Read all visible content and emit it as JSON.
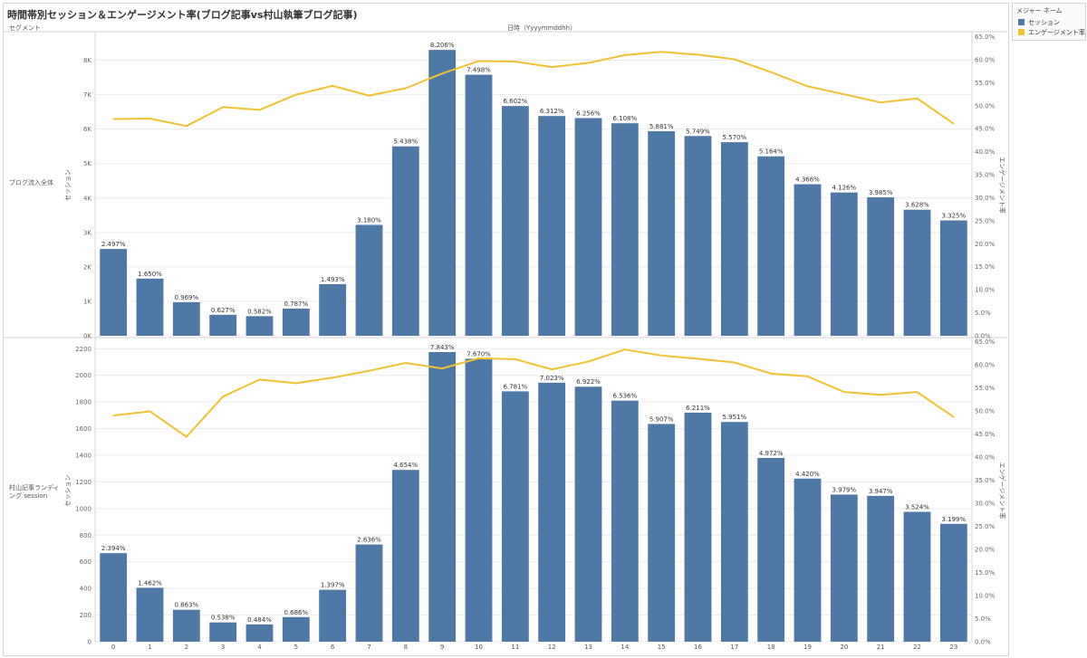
{
  "title": "時間帯別セッション＆エンゲージメント率(ブログ記事vs村山執筆ブログ記事)",
  "segment_header": "セグメント",
  "x_header": "日時（Yyyymmddhh）",
  "legend": {
    "title": "メジャー ネーム",
    "items": [
      {
        "label": "セッション",
        "color": "#4e79a7"
      },
      {
        "label": "エンゲージメント率",
        "color": "#f1c232"
      }
    ]
  },
  "colors": {
    "bar": "#4e79a7",
    "line": "#f1c232",
    "grid": "#ececec"
  },
  "chart_data": [
    {
      "type": "bar",
      "segment": "ブログ流入全体",
      "ylabel": "セッション",
      "y2label": "エンゲージメント率",
      "ylim": [
        0,
        8750
      ],
      "y2lim": [
        0,
        0.655
      ],
      "y_ticks": [
        {
          "value": 0,
          "label": "0K"
        },
        {
          "value": 1000,
          "label": "1K"
        },
        {
          "value": 2000,
          "label": "2K"
        },
        {
          "value": 3000,
          "label": "3K"
        },
        {
          "value": 4000,
          "label": "4K"
        },
        {
          "value": 5000,
          "label": "5K"
        },
        {
          "value": 6000,
          "label": "6K"
        },
        {
          "value": 7000,
          "label": "7K"
        },
        {
          "value": 8000,
          "label": "8K"
        }
      ],
      "y2_ticks": [
        {
          "value": 0.0,
          "label": "0.0%"
        },
        {
          "value": 0.05,
          "label": "5.0%"
        },
        {
          "value": 0.1,
          "label": "10.0%"
        },
        {
          "value": 0.15,
          "label": "15.0%"
        },
        {
          "value": 0.2,
          "label": "20.0%"
        },
        {
          "value": 0.25,
          "label": "25.0%"
        },
        {
          "value": 0.3,
          "label": "30.0%"
        },
        {
          "value": 0.35,
          "label": "35.0%"
        },
        {
          "value": 0.4,
          "label": "40.0%"
        },
        {
          "value": 0.45,
          "label": "45.0%"
        },
        {
          "value": 0.5,
          "label": "50.0%"
        },
        {
          "value": 0.55,
          "label": "55.0%"
        },
        {
          "value": 0.6,
          "label": "60.0%"
        },
        {
          "value": 0.65,
          "label": "65.0%"
        }
      ],
      "categories": [
        "0",
        "1",
        "2",
        "3",
        "4",
        "5",
        "6",
        "7",
        "8",
        "9",
        "10",
        "11",
        "12",
        "13",
        "14",
        "15",
        "16",
        "17",
        "18",
        "19",
        "20",
        "21",
        "22",
        "23"
      ],
      "series": [
        {
          "name": "セッション",
          "values": [
            2520,
            1660,
            975,
            610,
            570,
            790,
            1500,
            3220,
            5500,
            8300,
            7580,
            6670,
            6380,
            6320,
            6170,
            5940,
            5800,
            5620,
            5210,
            4400,
            4160,
            4020,
            3660,
            3350
          ]
        },
        {
          "name": "エンゲージメント率",
          "values": [
            0.471,
            0.472,
            0.456,
            0.497,
            0.491,
            0.524,
            0.543,
            0.522,
            0.538,
            0.57,
            0.597,
            0.596,
            0.584,
            0.593,
            0.61,
            0.617,
            0.611,
            0.601,
            0.573,
            0.542,
            0.525,
            0.507,
            0.516,
            0.461
          ]
        }
      ],
      "data_labels": [
        "2.497%",
        "1.650%",
        "0.969%",
        "0.627%",
        "0.582%",
        "0.787%",
        "1.493%",
        "3.180%",
        "5.438%",
        "8.206%",
        "7.498%",
        "6.602%",
        "6.312%",
        "6.256%",
        "6.108%",
        "5.881%",
        "5.749%",
        "5.570%",
        "5.164%",
        "4.366%",
        "4.126%",
        "3.985%",
        "3.628%",
        "3.325%"
      ]
    },
    {
      "type": "bar",
      "segment": "村山記事ランディング session",
      "ylabel": "セッション",
      "y2label": "エンゲージメント率",
      "ylim": [
        0,
        2270
      ],
      "y2lim": [
        0,
        0.655
      ],
      "y_ticks": [
        {
          "value": 0,
          "label": "0"
        },
        {
          "value": 200,
          "label": "200"
        },
        {
          "value": 400,
          "label": "400"
        },
        {
          "value": 600,
          "label": "600"
        },
        {
          "value": 800,
          "label": "800"
        },
        {
          "value": 1000,
          "label": "1000"
        },
        {
          "value": 1200,
          "label": "1200"
        },
        {
          "value": 1400,
          "label": "1400"
        },
        {
          "value": 1600,
          "label": "1600"
        },
        {
          "value": 1800,
          "label": "1800"
        },
        {
          "value": 2000,
          "label": "2000"
        },
        {
          "value": 2200,
          "label": "2200"
        }
      ],
      "y2_ticks": [
        {
          "value": 0.0,
          "label": "0.0%"
        },
        {
          "value": 0.05,
          "label": "5.0%"
        },
        {
          "value": 0.1,
          "label": "10.0%"
        },
        {
          "value": 0.15,
          "label": "15.0%"
        },
        {
          "value": 0.2,
          "label": "20.0%"
        },
        {
          "value": 0.25,
          "label": "25.0%"
        },
        {
          "value": 0.3,
          "label": "30.0%"
        },
        {
          "value": 0.35,
          "label": "35.0%"
        },
        {
          "value": 0.4,
          "label": "40.0%"
        },
        {
          "value": 0.45,
          "label": "45.0%"
        },
        {
          "value": 0.5,
          "label": "50.0%"
        },
        {
          "value": 0.55,
          "label": "55.0%"
        },
        {
          "value": 0.6,
          "label": "60.0%"
        },
        {
          "value": 0.65,
          "label": "65.0%"
        }
      ],
      "categories": [
        "0",
        "1",
        "2",
        "3",
        "4",
        "5",
        "6",
        "7",
        "8",
        "9",
        "10",
        "11",
        "12",
        "13",
        "14",
        "15",
        "16",
        "17",
        "18",
        "19",
        "20",
        "21",
        "22",
        "23"
      ],
      "series": [
        {
          "name": "セッション",
          "values": [
            665,
            405,
            240,
            145,
            130,
            185,
            390,
            730,
            1290,
            2175,
            2125,
            1880,
            1945,
            1915,
            1810,
            1635,
            1720,
            1650,
            1380,
            1225,
            1105,
            1095,
            975,
            885
          ]
        },
        {
          "name": "エンゲージメント率",
          "values": [
            0.49,
            0.499,
            0.444,
            0.531,
            0.568,
            0.56,
            0.572,
            0.587,
            0.604,
            0.592,
            0.614,
            0.612,
            0.59,
            0.607,
            0.633,
            0.62,
            0.613,
            0.605,
            0.581,
            0.575,
            0.541,
            0.535,
            0.541,
            0.487
          ]
        }
      ],
      "data_labels": [
        "2.394%",
        "1.462%",
        "0.863%",
        "0.538%",
        "0.484%",
        "0.686%",
        "1.397%",
        "2.636%",
        "4.654%",
        "7.843%",
        "7.670%",
        "6.781%",
        "7.023%",
        "6.922%",
        "6.536%",
        "5.907%",
        "6.211%",
        "5.951%",
        "4.972%",
        "4.420%",
        "3.979%",
        "3.947%",
        "3.524%",
        "3.199%"
      ]
    }
  ]
}
